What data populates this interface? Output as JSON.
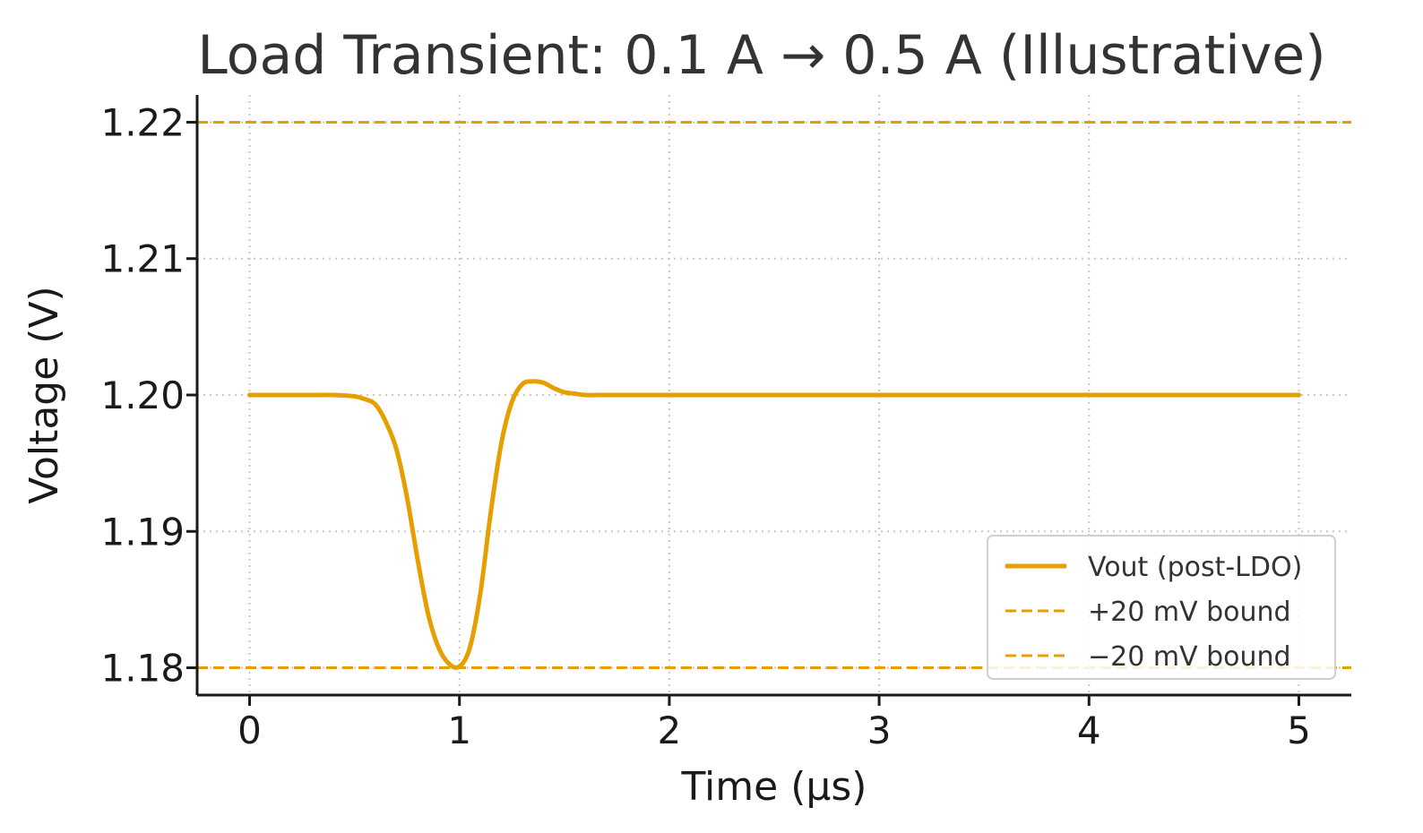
{
  "chart_data": {
    "type": "line",
    "title": "Load Transient: 0.1 A → 0.5 A (Illustrative)",
    "xlabel": "Time (µs)",
    "ylabel": "Voltage (V)",
    "xlim": [
      -0.25,
      5.25
    ],
    "ylim": [
      1.178,
      1.222
    ],
    "x_ticks": [
      0,
      1,
      2,
      3,
      4,
      5
    ],
    "x_tick_labels": [
      "0",
      "1",
      "2",
      "3",
      "4",
      "5"
    ],
    "y_ticks": [
      1.18,
      1.19,
      1.2,
      1.21,
      1.22
    ],
    "y_tick_labels": [
      "1.18",
      "1.19",
      "1.20",
      "1.21",
      "1.22"
    ],
    "grid": true,
    "legend_position": "lower-right",
    "series": [
      {
        "name": "Vout (post-LDO)",
        "style": "solid",
        "color": "#E69F00",
        "x": [
          0,
          0.1,
          0.2,
          0.3,
          0.4,
          0.5,
          0.55,
          0.6,
          0.65,
          0.7,
          0.75,
          0.8,
          0.85,
          0.9,
          0.95,
          1.0,
          1.05,
          1.1,
          1.15,
          1.2,
          1.25,
          1.3,
          1.35,
          1.4,
          1.45,
          1.5,
          1.55,
          1.6,
          1.7,
          1.8,
          2.0,
          2.5,
          3.0,
          3.5,
          4.0,
          4.5,
          5.0
        ],
        "values": [
          1.2,
          1.2,
          1.2,
          1.2,
          1.2,
          1.1999,
          1.1997,
          1.1993,
          1.198,
          1.196,
          1.1925,
          1.188,
          1.184,
          1.1815,
          1.1803,
          1.1801,
          1.1815,
          1.1855,
          1.1915,
          1.1965,
          1.1995,
          1.2008,
          1.201,
          1.2009,
          1.2005,
          1.2002,
          1.2001,
          1.2,
          1.2,
          1.2,
          1.2,
          1.2,
          1.2,
          1.2,
          1.2,
          1.2,
          1.2
        ]
      },
      {
        "name": "+20 mV bound",
        "style": "dashed",
        "color": "#E69F00",
        "hline": 1.22
      },
      {
        "name": "−20 mV bound",
        "style": "dashed",
        "color": "#E69F00",
        "hline": 1.18
      }
    ]
  }
}
